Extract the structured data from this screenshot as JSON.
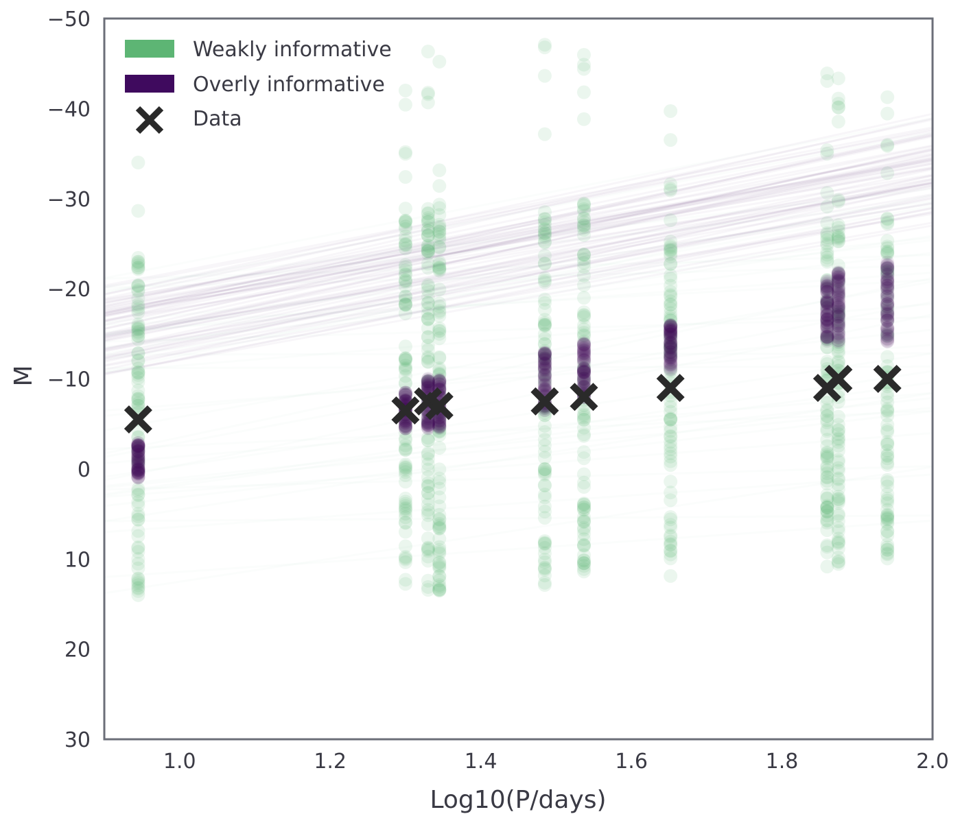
{
  "chart_data": {
    "type": "scatter",
    "title": "",
    "xlabel": "Log10(P/days)",
    "ylabel": "M",
    "xlim": [
      0.9,
      2.0
    ],
    "ylim": [
      30,
      -50
    ],
    "y_inverted": true,
    "grid": false,
    "legend_position": "top-left",
    "x_ticks": [
      "1.0",
      "1.2",
      "1.4",
      "1.6",
      "1.8",
      "2.0"
    ],
    "x_tick_values": [
      1.0,
      1.2,
      1.4,
      1.6,
      1.8,
      2.0
    ],
    "y_ticks": [
      "−50",
      "−40",
      "−30",
      "−20",
      "−10",
      "0",
      "10",
      "20",
      "30"
    ],
    "y_tick_values": [
      -50,
      -40,
      -30,
      -20,
      -10,
      0,
      10,
      20,
      30
    ],
    "colors": {
      "weak": "#5db574",
      "overly": "#3f0a5e",
      "data": "#2a2a2a",
      "axis": "#6b6e78"
    },
    "legend": [
      {
        "label": "Weakly informative",
        "marker": "patch",
        "color": "#5db574"
      },
      {
        "label": "Overly informative",
        "marker": "patch",
        "color": "#3f0a5e"
      },
      {
        "label": "Data",
        "marker": "x",
        "color": "#2a2a2a"
      }
    ],
    "data_points": {
      "x": [
        0.945,
        1.3,
        1.33,
        1.345,
        1.485,
        1.537,
        1.652,
        1.86,
        1.875,
        1.94
      ],
      "y": [
        -5.5,
        -6.5,
        -7.5,
        -7.0,
        -7.5,
        -8.0,
        -9.0,
        -9.0,
        -10.0,
        -10.0
      ]
    },
    "overly_informative": {
      "x": [
        0.945,
        1.3,
        1.33,
        1.345,
        1.485,
        1.537,
        1.652,
        1.86,
        1.875,
        1.94
      ],
      "y_min": [
        -3,
        -4.5,
        -4.5,
        -4.5,
        -6.5,
        -7.5,
        -11,
        -14,
        -14,
        -14
      ],
      "y_max": [
        1,
        -8.5,
        -10,
        -10,
        -13,
        -14,
        -16,
        -21,
        -22,
        -23
      ],
      "regression_intercept_range": [
        -12,
        -22
      ],
      "regression_slope_range": [
        13,
        19
      ]
    },
    "weakly_informative": {
      "x": [
        0.945,
        1.3,
        1.33,
        1.345,
        1.485,
        1.537,
        1.652,
        1.86,
        1.875,
        1.94
      ],
      "y_min": [
        14.5,
        13,
        13.5,
        14,
        13,
        12,
        12.5,
        11,
        11,
        10
      ],
      "y_max": [
        -37.5,
        -47,
        -47,
        -47,
        -49,
        -50,
        -40,
        -45,
        -45,
        -45.5
      ]
    }
  }
}
